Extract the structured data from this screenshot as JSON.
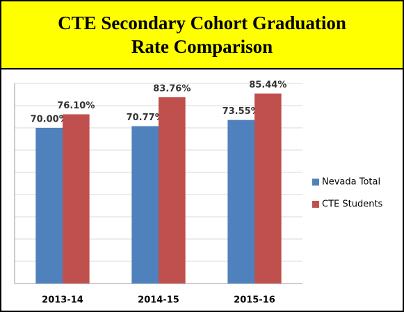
{
  "chart_data": {
    "type": "bar",
    "title": "CTE Secondary Cohort Graduation Rate Comparison",
    "categories": [
      "2013-14",
      "2014-15",
      "2015-16"
    ],
    "series": [
      {
        "name": "Nevada Total",
        "color": "#4f81bd",
        "values": [
          70.0,
          70.77,
          73.55
        ],
        "value_labels": [
          "70.00%",
          "70.77%",
          "73.55%"
        ]
      },
      {
        "name": "CTE Students",
        "color": "#c0504d",
        "values": [
          76.1,
          83.76,
          85.44
        ],
        "value_labels": [
          "76.10%",
          "83.76%",
          "85.44%"
        ]
      }
    ],
    "ylim": [
      0,
      90
    ],
    "yticks": [
      0,
      10,
      20,
      30,
      40,
      50,
      60,
      70,
      80,
      90
    ],
    "grid": true,
    "legend": "right"
  }
}
